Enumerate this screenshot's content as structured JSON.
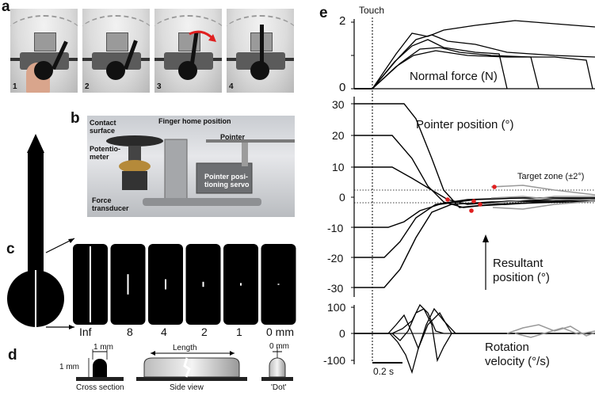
{
  "panels": {
    "a": {
      "letter": "a",
      "frames": [
        "1",
        "2",
        "3",
        "4"
      ]
    },
    "b": {
      "letter": "b",
      "labels": {
        "contact_surface": "Contact surface",
        "finger_home": "Finger home position",
        "pointer": "Pointer",
        "potentiometer": "Potentio-meter",
        "servo": "Pointer posi-tioning servo",
        "force_transducer": "Force transducer"
      }
    },
    "c": {
      "letter": "c",
      "length_labels": [
        "Inf",
        "8",
        "4",
        "2",
        "1",
        "0 mm"
      ],
      "length_values_mm": [
        999,
        8,
        4,
        2,
        1,
        0
      ]
    },
    "d": {
      "letter": "d",
      "cross_width": "1 mm",
      "cross_height": "1 mm",
      "cross_caption": "Cross section",
      "length_label": "Length",
      "side_caption": "Side view",
      "dot_width": "0 mm",
      "dot_caption": "'Dot'"
    },
    "e": {
      "letter": "e",
      "touch_label": "Touch",
      "force_title": "Normal force (N)",
      "force_ticks": [
        "2",
        "1",
        "0"
      ],
      "position_title": "Pointer position (°)",
      "position_ticks": [
        "30",
        "20",
        "10",
        "0",
        "-10",
        "-20",
        "-30"
      ],
      "target_label": "Target zone (±2°)",
      "resultant_label": "Resultant position (°)",
      "velocity_title": "Rotation velocity (°/s)",
      "velocity_ticks": [
        "100",
        "0",
        "-100"
      ],
      "scale_bar": "0.2 s"
    }
  },
  "colors": {
    "trace": "#000000",
    "resultant_trace": "#999999",
    "marker": "#e02020"
  }
}
